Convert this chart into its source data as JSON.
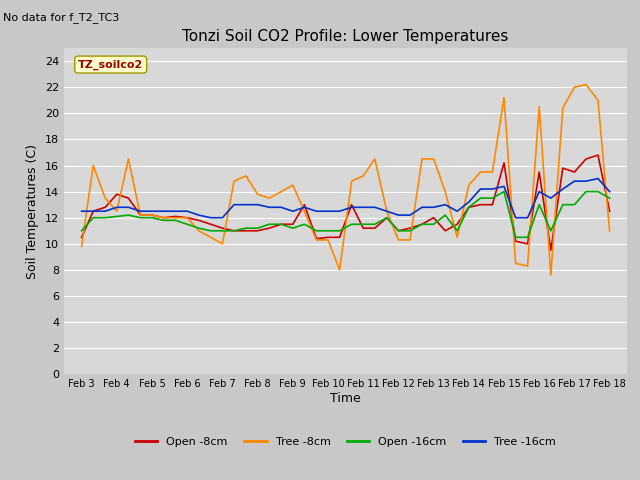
{
  "title": "Tonzi Soil CO2 Profile: Lower Temperatures",
  "subtitle": "No data for f_T2_TC3",
  "ylabel": "Soil Temperatures (C)",
  "xlabel": "Time",
  "legend_label": "TZ_soilco2",
  "ylim": [
    0,
    25
  ],
  "yticks": [
    0,
    2,
    4,
    6,
    8,
    10,
    12,
    14,
    16,
    18,
    20,
    22,
    24
  ],
  "x_labels": [
    "Feb 3",
    "Feb 4",
    "Feb 5",
    "Feb 6",
    "Feb 7",
    "Feb 8",
    "Feb 9",
    "Feb 10",
    "Feb 11",
    "Feb 12",
    "Feb 13",
    "Feb 14",
    "Feb 15",
    "Feb 16",
    "Feb 17",
    "Feb 18"
  ],
  "fig_bg_color": "#c8c8c8",
  "plot_bg_color": "#d8d8d8",
  "grid_color": "#ffffff",
  "series": {
    "open_8cm": {
      "color": "#cc0000",
      "label": "Open -8cm",
      "x": [
        0,
        0.33,
        0.67,
        1,
        1.33,
        1.67,
        2,
        2.33,
        2.67,
        3,
        3.33,
        3.67,
        4,
        4.33,
        4.67,
        5,
        5.33,
        5.67,
        6,
        6.33,
        6.67,
        7,
        7.33,
        7.67,
        8,
        8.33,
        8.67,
        9,
        9.33,
        9.67,
        10,
        10.33,
        10.67,
        11,
        11.33,
        11.67,
        12,
        12.33,
        12.67,
        13,
        13.33,
        13.67,
        14,
        14.33,
        14.67,
        15
      ],
      "y": [
        10.5,
        12.5,
        12.8,
        13.8,
        13.5,
        12.2,
        12.2,
        12.0,
        12.1,
        12.0,
        11.8,
        11.5,
        11.2,
        11.0,
        11.0,
        11.0,
        11.2,
        11.5,
        11.5,
        13.0,
        10.4,
        10.5,
        10.5,
        13.0,
        11.2,
        11.2,
        12.0,
        11.0,
        11.2,
        11.5,
        12.0,
        11.0,
        11.5,
        12.8,
        13.0,
        13.0,
        16.2,
        10.2,
        10.0,
        15.5,
        9.5,
        15.8,
        15.5,
        16.5,
        16.8,
        12.5
      ]
    },
    "tree_8cm": {
      "color": "#ff8800",
      "label": "Tree -8cm",
      "x": [
        0,
        0.33,
        0.67,
        1,
        1.33,
        1.67,
        2,
        2.33,
        2.67,
        3,
        3.33,
        3.67,
        4,
        4.33,
        4.67,
        5,
        5.33,
        5.67,
        6,
        6.33,
        6.67,
        7,
        7.33,
        7.67,
        8,
        8.33,
        8.67,
        9,
        9.33,
        9.67,
        10,
        10.33,
        10.67,
        11,
        11.33,
        11.67,
        12,
        12.33,
        12.67,
        13,
        13.33,
        13.67,
        14,
        14.33,
        14.67,
        15
      ],
      "y": [
        9.8,
        16.0,
        13.5,
        12.5,
        16.5,
        12.2,
        12.2,
        12.0,
        12.0,
        12.0,
        11.0,
        10.5,
        10.0,
        14.8,
        15.2,
        13.8,
        13.5,
        14.0,
        14.5,
        12.5,
        10.3,
        10.3,
        8.0,
        14.8,
        15.2,
        16.5,
        12.5,
        10.3,
        10.3,
        16.5,
        16.5,
        14.0,
        10.5,
        14.5,
        15.5,
        15.5,
        21.2,
        8.5,
        8.3,
        20.5,
        7.6,
        20.4,
        22.0,
        22.2,
        21.0,
        11.0
      ]
    },
    "open_16cm": {
      "color": "#00aa00",
      "label": "Open -16cm",
      "x": [
        0,
        0.33,
        0.67,
        1,
        1.33,
        1.67,
        2,
        2.33,
        2.67,
        3,
        3.33,
        3.67,
        4,
        4.33,
        4.67,
        5,
        5.33,
        5.67,
        6,
        6.33,
        6.67,
        7,
        7.33,
        7.67,
        8,
        8.33,
        8.67,
        9,
        9.33,
        9.67,
        10,
        10.33,
        10.67,
        11,
        11.33,
        11.67,
        12,
        12.33,
        12.67,
        13,
        13.33,
        13.67,
        14,
        14.33,
        14.67,
        15
      ],
      "y": [
        11.0,
        12.0,
        12.0,
        12.1,
        12.2,
        12.0,
        12.0,
        11.8,
        11.8,
        11.5,
        11.2,
        11.0,
        11.0,
        11.0,
        11.2,
        11.2,
        11.5,
        11.5,
        11.2,
        11.5,
        11.0,
        11.0,
        11.0,
        11.5,
        11.5,
        11.5,
        12.0,
        11.0,
        11.0,
        11.5,
        11.5,
        12.2,
        11.0,
        12.8,
        13.5,
        13.5,
        14.0,
        10.5,
        10.5,
        13.0,
        11.0,
        13.0,
        13.0,
        14.0,
        14.0,
        13.5
      ]
    },
    "tree_16cm": {
      "color": "#0033cc",
      "label": "Tree -16cm",
      "x": [
        0,
        0.33,
        0.67,
        1,
        1.33,
        1.67,
        2,
        2.33,
        2.67,
        3,
        3.33,
        3.67,
        4,
        4.33,
        4.67,
        5,
        5.33,
        5.67,
        6,
        6.33,
        6.67,
        7,
        7.33,
        7.67,
        8,
        8.33,
        8.67,
        9,
        9.33,
        9.67,
        10,
        10.33,
        10.67,
        11,
        11.33,
        11.67,
        12,
        12.33,
        12.67,
        13,
        13.33,
        13.67,
        14,
        14.33,
        14.67,
        15
      ],
      "y": [
        12.5,
        12.5,
        12.5,
        12.8,
        12.8,
        12.5,
        12.5,
        12.5,
        12.5,
        12.5,
        12.2,
        12.0,
        12.0,
        13.0,
        13.0,
        13.0,
        12.8,
        12.8,
        12.5,
        12.8,
        12.5,
        12.5,
        12.5,
        12.8,
        12.8,
        12.8,
        12.5,
        12.2,
        12.2,
        12.8,
        12.8,
        13.0,
        12.5,
        13.2,
        14.2,
        14.2,
        14.4,
        12.0,
        12.0,
        14.0,
        13.5,
        14.2,
        14.8,
        14.8,
        15.0,
        14.0
      ]
    }
  }
}
